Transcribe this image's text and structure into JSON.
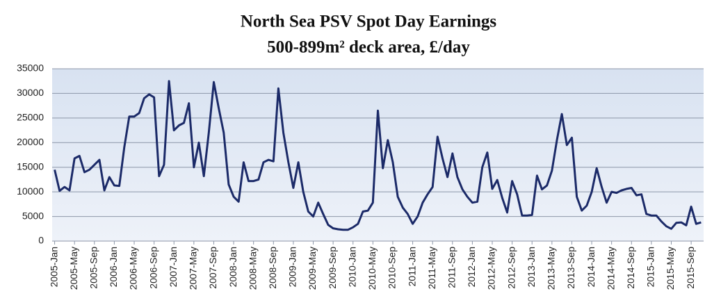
{
  "chart_data": {
    "type": "line",
    "title": "North Sea PSV Spot Day Earnings",
    "subtitle": "500-899m² deck area, £/day",
    "categories": [
      "2005-Jan",
      null,
      null,
      null,
      "2005-May",
      null,
      null,
      null,
      "2005-Sep",
      null,
      null,
      null,
      "2006-Jan",
      null,
      null,
      null,
      "2006-May",
      null,
      null,
      null,
      "2006-Sep",
      null,
      null,
      null,
      "2007-Jan",
      null,
      null,
      null,
      "2007-May",
      null,
      null,
      null,
      "2007-Sep",
      null,
      null,
      null,
      "2008-Jan",
      null,
      null,
      null,
      "2008-May",
      null,
      null,
      null,
      "2008-Sep",
      null,
      null,
      null,
      "2009-Jan",
      null,
      null,
      null,
      "2009-May",
      null,
      null,
      null,
      "2009-Sep",
      null,
      null,
      null,
      "2010-Jan",
      null,
      null,
      null,
      "2010-May",
      null,
      null,
      null,
      "2010-Sep",
      null,
      null,
      null,
      "2011-Jan",
      null,
      null,
      null,
      "2011-May",
      null,
      null,
      null,
      "2011-Sep",
      null,
      null,
      null,
      "2012-Jan",
      null,
      null,
      null,
      "2012-May",
      null,
      null,
      null,
      "2012-Sep",
      null,
      null,
      null,
      "2013-Jan",
      null,
      null,
      null,
      "2013-May",
      null,
      null,
      null,
      "2013-Sep",
      null,
      null,
      null,
      "2014-Jan",
      null,
      null,
      null,
      "2014-May",
      null,
      null,
      null,
      "2014-Sep",
      null,
      null,
      null,
      "2015-Jan",
      null,
      null,
      null,
      "2015-May",
      null,
      null,
      null,
      "2015-Sep",
      null,
      null
    ],
    "values": [
      14500,
      10200,
      11000,
      10300,
      16800,
      17300,
      14000,
      14500,
      15500,
      16500,
      10300,
      13000,
      11300,
      11200,
      19000,
      25300,
      25300,
      26000,
      29000,
      29800,
      29200,
      13200,
      15500,
      32500,
      22500,
      23500,
      24000,
      28000,
      15000,
      20000,
      13200,
      22000,
      32300,
      27000,
      22000,
      11500,
      9000,
      8000,
      16000,
      12200,
      12200,
      12500,
      16000,
      16500,
      16200,
      31000,
      22000,
      16000,
      10800,
      16000,
      10000,
      6000,
      5000,
      7800,
      5500,
      3300,
      2600,
      2400,
      2300,
      2300,
      2800,
      3500,
      6000,
      6200,
      7800,
      26500,
      14800,
      20500,
      16000,
      9000,
      6800,
      5500,
      3500,
      5000,
      7800,
      9500,
      11000,
      21200,
      16800,
      13000,
      17800,
      13000,
      10500,
      9000,
      7800,
      8000,
      15000,
      18000,
      10600,
      12400,
      8800,
      5800,
      12200,
      9500,
      5200,
      5200,
      5300,
      13300,
      10500,
      11300,
      14300,
      20500,
      25800,
      19500,
      21000,
      9000,
      6200,
      7200,
      10000,
      14800,
      11000,
      7800,
      10000,
      9800,
      10300,
      10600,
      10800,
      9300,
      9500,
      5500,
      5200,
      5200,
      4000,
      3000,
      2500,
      3700,
      3800,
      3200,
      7000,
      3500,
      3800
    ],
    "color": "#1b2a68",
    "ylim": [
      0,
      35000
    ],
    "yticks": [
      0,
      5000,
      10000,
      15000,
      20000,
      25000,
      30000,
      35000
    ],
    "grid": true
  }
}
